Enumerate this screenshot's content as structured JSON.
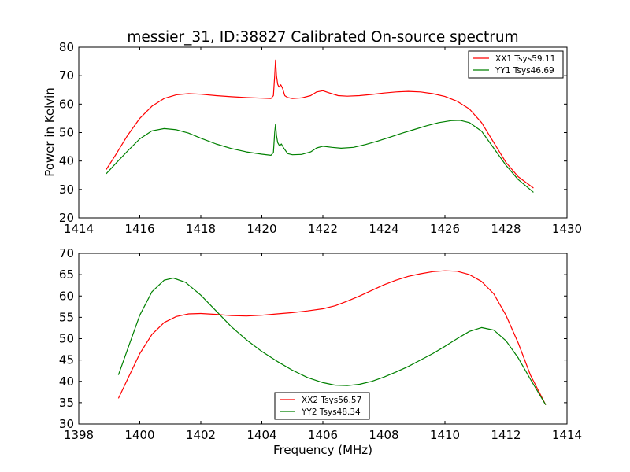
{
  "figure": {
    "title": "messier_31, ID:38827 Calibrated On-source spectrum",
    "xlabel": "Frequency (MHz)",
    "ylabel": "Power in Kelvin"
  },
  "chart_data": [
    {
      "type": "line",
      "title": "messier_31, ID:38827 Calibrated On-source spectrum",
      "xlabel": "",
      "ylabel": "Power in Kelvin",
      "xlim": [
        1414,
        1430
      ],
      "ylim": [
        20,
        80
      ],
      "xticks": [
        1414,
        1416,
        1418,
        1420,
        1422,
        1424,
        1426,
        1428,
        1430
      ],
      "yticks": [
        20,
        30,
        40,
        50,
        60,
        70,
        80
      ],
      "grid": false,
      "legend_position": "top-right",
      "series": [
        {
          "name": "XX1 Tsys59.11",
          "color": "#ff0000",
          "points": [
            [
              1414.9,
              37
            ],
            [
              1415.2,
              42
            ],
            [
              1415.6,
              49
            ],
            [
              1416.0,
              55
            ],
            [
              1416.4,
              59.3
            ],
            [
              1416.8,
              62
            ],
            [
              1417.2,
              63.3
            ],
            [
              1417.6,
              63.7
            ],
            [
              1418.0,
              63.5
            ],
            [
              1418.5,
              63
            ],
            [
              1419.0,
              62.6
            ],
            [
              1419.5,
              62.3
            ],
            [
              1420.0,
              62.1
            ],
            [
              1420.3,
              62
            ],
            [
              1420.38,
              63
            ],
            [
              1420.42,
              70
            ],
            [
              1420.45,
              75.5
            ],
            [
              1420.48,
              70
            ],
            [
              1420.52,
              67
            ],
            [
              1420.56,
              66
            ],
            [
              1420.62,
              66.8
            ],
            [
              1420.68,
              65.5
            ],
            [
              1420.75,
              63
            ],
            [
              1420.85,
              62.3
            ],
            [
              1421.0,
              62
            ],
            [
              1421.3,
              62.2
            ],
            [
              1421.6,
              63
            ],
            [
              1421.8,
              64.3
            ],
            [
              1422.0,
              64.7
            ],
            [
              1422.2,
              64
            ],
            [
              1422.5,
              63
            ],
            [
              1422.8,
              62.8
            ],
            [
              1423.2,
              63
            ],
            [
              1423.6,
              63.4
            ],
            [
              1424.0,
              63.9
            ],
            [
              1424.4,
              64.3
            ],
            [
              1424.8,
              64.5
            ],
            [
              1425.2,
              64.3
            ],
            [
              1425.6,
              63.7
            ],
            [
              1426.0,
              62.7
            ],
            [
              1426.4,
              61
            ],
            [
              1426.8,
              58.3
            ],
            [
              1427.2,
              53.5
            ],
            [
              1427.6,
              46.5
            ],
            [
              1428.0,
              39.5
            ],
            [
              1428.4,
              34.5
            ],
            [
              1428.9,
              30.5
            ]
          ]
        },
        {
          "name": "YY1 Tsys46.69",
          "color": "#008000",
          "points": [
            [
              1414.9,
              35.5
            ],
            [
              1415.2,
              39
            ],
            [
              1415.6,
              43.5
            ],
            [
              1416.0,
              47.8
            ],
            [
              1416.4,
              50.6
            ],
            [
              1416.8,
              51.4
            ],
            [
              1417.2,
              51
            ],
            [
              1417.6,
              49.8
            ],
            [
              1418.0,
              48
            ],
            [
              1418.5,
              46
            ],
            [
              1419.0,
              44.4
            ],
            [
              1419.5,
              43.2
            ],
            [
              1420.0,
              42.4
            ],
            [
              1420.3,
              42
            ],
            [
              1420.38,
              43
            ],
            [
              1420.42,
              50
            ],
            [
              1420.45,
              53
            ],
            [
              1420.48,
              49
            ],
            [
              1420.52,
              46.5
            ],
            [
              1420.58,
              45.3
            ],
            [
              1420.64,
              46
            ],
            [
              1420.72,
              44.5
            ],
            [
              1420.85,
              42.6
            ],
            [
              1421.0,
              42.2
            ],
            [
              1421.3,
              42.3
            ],
            [
              1421.6,
              43.2
            ],
            [
              1421.8,
              44.6
            ],
            [
              1422.0,
              45.2
            ],
            [
              1422.3,
              44.8
            ],
            [
              1422.6,
              44.5
            ],
            [
              1423.0,
              44.8
            ],
            [
              1423.4,
              45.8
            ],
            [
              1423.8,
              47
            ],
            [
              1424.2,
              48.4
            ],
            [
              1424.6,
              49.8
            ],
            [
              1425.0,
              51.1
            ],
            [
              1425.4,
              52.4
            ],
            [
              1425.8,
              53.5
            ],
            [
              1426.2,
              54.2
            ],
            [
              1426.5,
              54.3
            ],
            [
              1426.8,
              53.5
            ],
            [
              1427.2,
              50.5
            ],
            [
              1427.6,
              44.5
            ],
            [
              1428.0,
              38.5
            ],
            [
              1428.4,
              33.5
            ],
            [
              1428.9,
              29
            ]
          ]
        }
      ]
    },
    {
      "type": "line",
      "title": "",
      "xlabel": "Frequency (MHz)",
      "ylabel": "",
      "xlim": [
        1398,
        1414
      ],
      "ylim": [
        30,
        70
      ],
      "xticks": [
        1398,
        1400,
        1402,
        1404,
        1406,
        1408,
        1410,
        1412,
        1414
      ],
      "yticks": [
        30,
        35,
        40,
        45,
        50,
        55,
        60,
        65,
        70
      ],
      "grid": false,
      "legend_position": "bottom-center",
      "series": [
        {
          "name": "XX2 Tsys56.57",
          "color": "#ff0000",
          "points": [
            [
              1399.3,
              36
            ],
            [
              1399.6,
              40.5
            ],
            [
              1400.0,
              46.5
            ],
            [
              1400.4,
              51
            ],
            [
              1400.8,
              53.8
            ],
            [
              1401.2,
              55.2
            ],
            [
              1401.6,
              55.8
            ],
            [
              1402.0,
              55.9
            ],
            [
              1402.5,
              55.7
            ],
            [
              1403.0,
              55.4
            ],
            [
              1403.5,
              55.3
            ],
            [
              1404.0,
              55.5
            ],
            [
              1404.5,
              55.8
            ],
            [
              1405.0,
              56.1
            ],
            [
              1405.5,
              56.5
            ],
            [
              1406.0,
              57
            ],
            [
              1406.4,
              57.7
            ],
            [
              1406.8,
              58.8
            ],
            [
              1407.2,
              60
            ],
            [
              1407.6,
              61.3
            ],
            [
              1408.0,
              62.6
            ],
            [
              1408.4,
              63.7
            ],
            [
              1408.8,
              64.6
            ],
            [
              1409.2,
              65.2
            ],
            [
              1409.6,
              65.7
            ],
            [
              1410.0,
              65.9
            ],
            [
              1410.4,
              65.8
            ],
            [
              1410.8,
              65
            ],
            [
              1411.2,
              63.4
            ],
            [
              1411.6,
              60.5
            ],
            [
              1412.0,
              55.5
            ],
            [
              1412.4,
              49
            ],
            [
              1412.8,
              41.5
            ],
            [
              1413.3,
              34.5
            ]
          ]
        },
        {
          "name": "YY2 Tsys48.34",
          "color": "#008000",
          "points": [
            [
              1399.3,
              41.5
            ],
            [
              1399.6,
              47.5
            ],
            [
              1400.0,
              55.5
            ],
            [
              1400.4,
              61
            ],
            [
              1400.8,
              63.7
            ],
            [
              1401.1,
              64.2
            ],
            [
              1401.5,
              63.2
            ],
            [
              1402.0,
              60.2
            ],
            [
              1402.5,
              56.5
            ],
            [
              1403.0,
              52.8
            ],
            [
              1403.5,
              49.7
            ],
            [
              1404.0,
              47
            ],
            [
              1404.5,
              44.7
            ],
            [
              1405.0,
              42.6
            ],
            [
              1405.5,
              40.9
            ],
            [
              1406.0,
              39.7
            ],
            [
              1406.4,
              39.1
            ],
            [
              1406.8,
              39
            ],
            [
              1407.2,
              39.3
            ],
            [
              1407.6,
              40
            ],
            [
              1408.0,
              41
            ],
            [
              1408.4,
              42.2
            ],
            [
              1408.8,
              43.5
            ],
            [
              1409.2,
              45
            ],
            [
              1409.6,
              46.5
            ],
            [
              1410.0,
              48.2
            ],
            [
              1410.4,
              50
            ],
            [
              1410.8,
              51.7
            ],
            [
              1411.2,
              52.6
            ],
            [
              1411.6,
              52
            ],
            [
              1412.0,
              49.5
            ],
            [
              1412.4,
              45.5
            ],
            [
              1412.8,
              40.5
            ],
            [
              1413.3,
              34.5
            ]
          ]
        }
      ]
    }
  ]
}
